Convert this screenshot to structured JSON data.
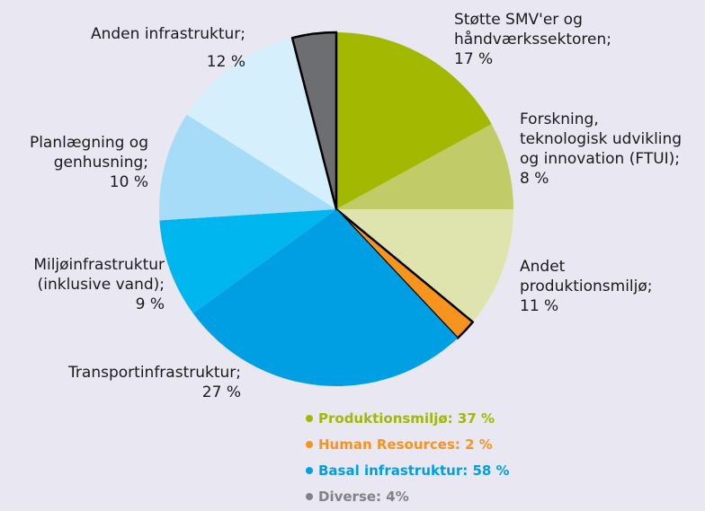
{
  "chart_data": {
    "type": "pie",
    "categories": [
      "Støtte SMV'er og\nhåndværkssektoren;",
      "Forskning,\nteknologisk udvikling\nog innovation (FTUI);",
      "Andet\nproduktionsmiljø;",
      null,
      "Transportinfrastruktur;",
      "Miljøinfrastruktur\n(inklusive vand);",
      "Planlægning og\ngenhusning;",
      "Anden infrastruktur;",
      null
    ],
    "values": [
      17,
      8,
      11,
      2,
      27,
      9,
      10,
      12,
      4
    ],
    "value_labels": [
      "17 %",
      "8 %",
      "11 %",
      null,
      "27 %",
      "9 %",
      "10 %",
      "12 %",
      null
    ],
    "colors": [
      "#a3b800",
      "#c1cb68",
      "#dfe4ae",
      "#f7941d",
      "#009fe3",
      "#00b6ef",
      "#a6dcf8",
      "#d6effc",
      "#6d6e71"
    ],
    "legend": [
      {
        "text": "Produktionsmiljø: 37 %",
        "color": "#a3b800"
      },
      {
        "text": "Human Resources: 2 %",
        "color": "#f7941d"
      },
      {
        "text": "Basal infrastruktur: 58 %",
        "color": "#009fe3"
      },
      {
        "text": "Diverse: 4%",
        "color": "#808285"
      }
    ]
  }
}
